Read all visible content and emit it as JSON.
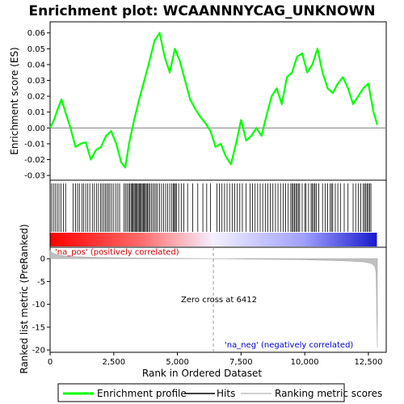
{
  "chart_data": {
    "type": "line",
    "title": "Enrichment plot: WCAANNNYCAG_UNKNOWN",
    "xlabel": "Rank in Ordered Dataset",
    "ylabel_top": "Enrichment score (ES)",
    "ylabel_bottom": "Ranked list metric (PreRanked)",
    "xlim": [
      0,
      13200
    ],
    "x_ticks": [
      0,
      2500,
      5000,
      7500,
      10000,
      12500
    ],
    "x_tick_labels": [
      "0",
      "2,500",
      "5,000",
      "7,500",
      "10,000",
      "12,500"
    ],
    "es_ylim": [
      -0.033,
      0.067
    ],
    "es_ticks": [
      -0.03,
      -0.02,
      -0.01,
      0.0,
      0.01,
      0.02,
      0.03,
      0.04,
      0.05,
      0.06
    ],
    "es_tick_labels": [
      "-0.03",
      "-0.02",
      "-0.01",
      "0.00",
      "0.01",
      "0.02",
      "0.03",
      "0.04",
      "0.05",
      "0.06"
    ],
    "metric_ylim": [
      -20.5,
      2.5
    ],
    "metric_ticks": [
      0,
      -5,
      -10,
      -15,
      -20
    ],
    "metric_tick_labels": [
      "0",
      "-5",
      "-10",
      "-15",
      "-20"
    ],
    "series": [
      {
        "name": "Enrichment profile",
        "color": "#00ff00",
        "x": [
          0,
          150,
          300,
          450,
          600,
          800,
          1000,
          1200,
          1400,
          1600,
          1800,
          2000,
          2200,
          2400,
          2600,
          2800,
          2950,
          3100,
          3300,
          3500,
          3700,
          3900,
          4100,
          4300,
          4500,
          4700,
          4900,
          5100,
          5300,
          5500,
          5700,
          5900,
          6100,
          6300,
          6500,
          6700,
          6900,
          7100,
          7300,
          7500,
          7700,
          7900,
          8100,
          8300,
          8500,
          8700,
          8900,
          9100,
          9300,
          9500,
          9700,
          9900,
          10100,
          10300,
          10500,
          10700,
          10900,
          11100,
          11300,
          11500,
          11700,
          11900,
          12100,
          12300,
          12500,
          12700,
          12850
        ],
        "y": [
          0.0,
          0.005,
          0.012,
          0.018,
          0.01,
          0.0,
          -0.012,
          -0.01,
          -0.009,
          -0.02,
          -0.014,
          -0.012,
          -0.005,
          -0.002,
          -0.01,
          -0.022,
          -0.025,
          -0.01,
          0.005,
          0.018,
          0.03,
          0.042,
          0.055,
          0.06,
          0.045,
          0.035,
          0.05,
          0.042,
          0.03,
          0.018,
          0.012,
          0.007,
          0.003,
          -0.002,
          -0.012,
          -0.01,
          -0.018,
          -0.023,
          -0.01,
          0.005,
          -0.008,
          -0.005,
          0.0,
          -0.005,
          0.008,
          0.02,
          0.025,
          0.015,
          0.032,
          0.035,
          0.045,
          0.047,
          0.035,
          0.04,
          0.05,
          0.035,
          0.025,
          0.022,
          0.028,
          0.032,
          0.025,
          0.015,
          0.02,
          0.025,
          0.028,
          0.01,
          0.002
        ]
      },
      {
        "name": "Hits",
        "color": "#000000"
      },
      {
        "name": "Ranking metric scores",
        "color": "#c0c0c0"
      }
    ],
    "hit_positions": [
      60,
      130,
      200,
      280,
      350,
      430,
      520,
      610,
      900,
      1000,
      1080,
      1150,
      1250,
      1320,
      1400,
      1480,
      1560,
      1660,
      1740,
      1820,
      1900,
      1980,
      2040,
      2110,
      2170,
      2230,
      2290,
      2350,
      2420,
      2500,
      2580,
      2660,
      2730,
      2900,
      2960,
      3020,
      3080,
      3130,
      3180,
      3220,
      3260,
      3300,
      3340,
      3380,
      3420,
      3460,
      3500,
      3540,
      3580,
      3620,
      3660,
      3700,
      3740,
      3780,
      3820,
      3870,
      3920,
      3980,
      4040,
      4100,
      4160,
      4220,
      4300,
      4380,
      4460,
      4540,
      4620,
      4700,
      4780,
      4840,
      4880,
      4920,
      4960,
      5050,
      5150,
      5250,
      5400,
      5600,
      5800,
      6000,
      6150,
      6300,
      6550,
      6650,
      6750,
      6850,
      6950,
      7050,
      7150,
      7250,
      7350,
      7450,
      7550,
      7700,
      7850,
      7950,
      8050,
      8150,
      8250,
      8350,
      8450,
      8550,
      8650,
      8750,
      8850,
      8950,
      9050,
      9150,
      9250,
      9350,
      9450,
      9500,
      9550,
      9600,
      9650,
      9700,
      9750,
      9800,
      9900,
      10000,
      10050,
      10150,
      10250,
      10300,
      10350,
      10400,
      10450,
      10550,
      10700,
      10800,
      10900,
      11000,
      11050,
      11100,
      11200,
      11300,
      11400,
      11550,
      11700,
      11900,
      12000,
      12100,
      12200,
      12300,
      12350,
      12400,
      12450,
      12500,
      12550,
      12600
    ],
    "ranking_metric": {
      "x": [
        0,
        100,
        300,
        800,
        2000,
        4000,
        6412,
        8000,
        10000,
        11500,
        12300,
        12600,
        12750,
        12800,
        12820,
        12850
      ],
      "y": [
        1.8,
        1.2,
        0.8,
        0.45,
        0.25,
        0.12,
        0.0,
        -0.1,
        -0.25,
        -0.45,
        -0.7,
        -1.0,
        -1.6,
        -3.0,
        -8.0,
        -19.5
      ]
    },
    "zero_cross_x": 6412,
    "annotations": {
      "pos_label": "'na_pos' (positively correlated)",
      "neg_label": "'na_neg' (negatively correlated)",
      "zero_cross_label": "Zero cross at 6412"
    },
    "legend": {
      "placement": "bottom",
      "entries": [
        "Enrichment profile",
        "Hits",
        "Ranking metric scores"
      ]
    }
  }
}
